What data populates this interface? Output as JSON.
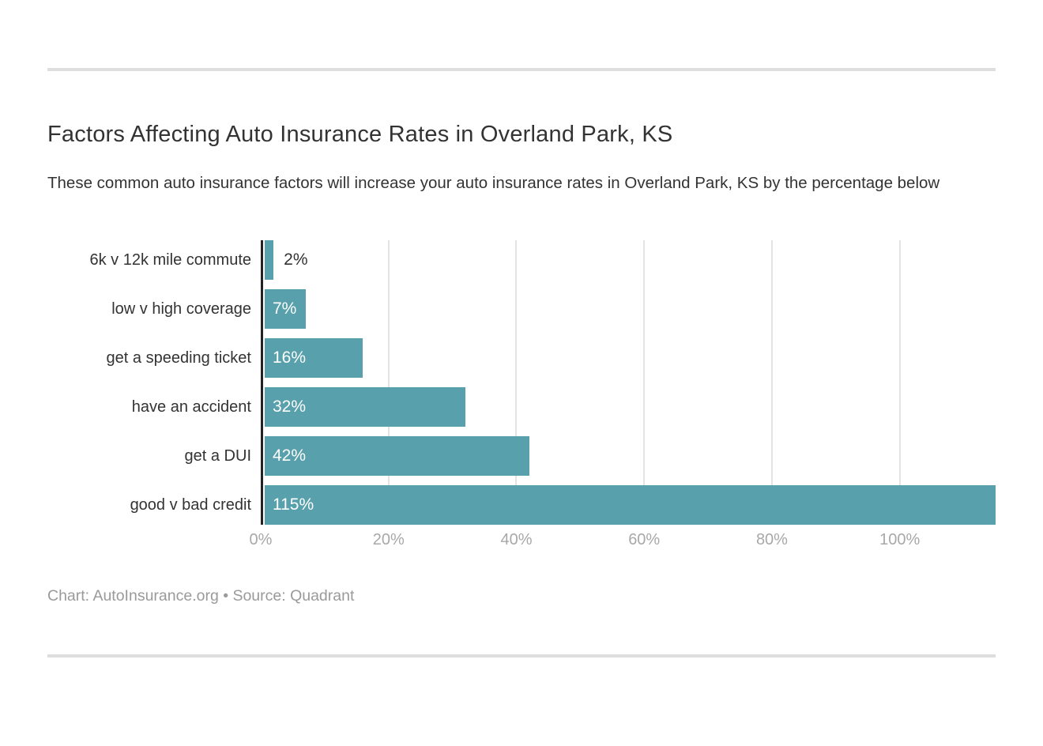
{
  "chart_data": {
    "type": "bar",
    "orientation": "horizontal",
    "title": "Factors Affecting Auto Insurance Rates in Overland Park, KS",
    "subtitle": "These common auto insurance factors will increase your auto insurance rates in Overland Park, KS by the percentage below",
    "categories": [
      "6k v 12k mile commute",
      "low v high coverage",
      "get a speeding ticket",
      "have an accident",
      "get a DUI",
      "good v bad credit"
    ],
    "values": [
      2,
      7,
      16,
      32,
      42,
      115
    ],
    "value_labels": [
      "2%",
      "7%",
      "16%",
      "32%",
      "42%",
      "115%"
    ],
    "xlim": [
      0,
      115
    ],
    "x_ticks": [
      0,
      20,
      40,
      60,
      80,
      100
    ],
    "x_tick_labels": [
      "0%",
      "20%",
      "40%",
      "60%",
      "80%",
      "100%"
    ],
    "grid": true,
    "legend": "none",
    "bar_color": "#57a0ac",
    "axis_color": "#222222",
    "gridline_color": "#e3e3e3",
    "inside_label_color": "#ffffff",
    "outside_label_color": "#333333",
    "tick_label_color": "#a8a8a8"
  },
  "footer": {
    "credit": "Chart: AutoInsurance.org • Source: Quadrant"
  }
}
